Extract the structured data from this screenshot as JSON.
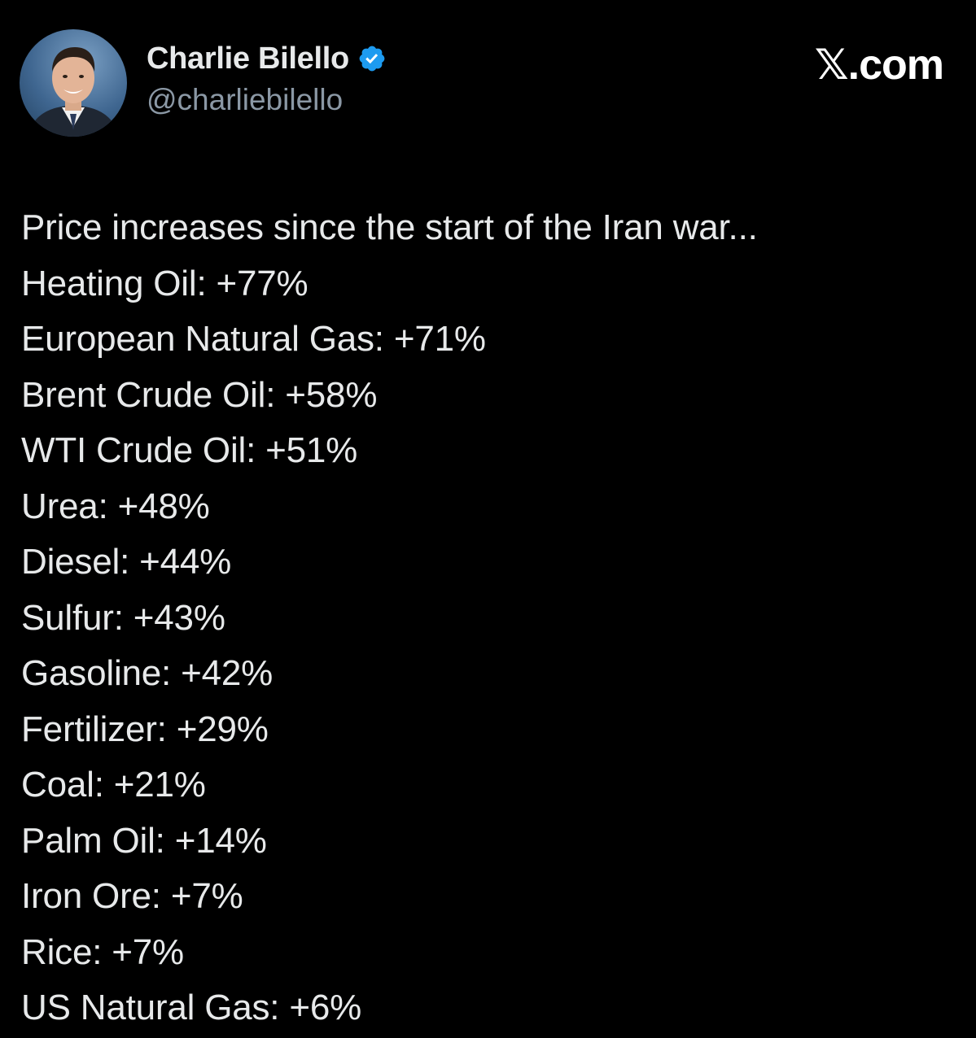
{
  "author": {
    "display_name": "Charlie Bilello",
    "handle": "@charliebilello",
    "verified_icon": "verified-badge-icon",
    "accent_color": "#1d9bf0"
  },
  "brand": {
    "label": "𝕏.com"
  },
  "tweet": {
    "intro": "Price increases since the start of the Iran war...",
    "items": [
      "Heating Oil: +77%",
      "European Natural Gas: +71%",
      "Brent Crude Oil: +58%",
      "WTI Crude Oil: +51%",
      "Urea: +48%",
      "Diesel: +44%",
      "Sulfur: +43%",
      "Gasoline: +42%",
      "Fertilizer: +29%",
      "Coal: +21%",
      "Palm Oil: +14%",
      "Iron Ore: +7%",
      "Rice: +7%",
      "US Natural Gas: +6%"
    ]
  }
}
